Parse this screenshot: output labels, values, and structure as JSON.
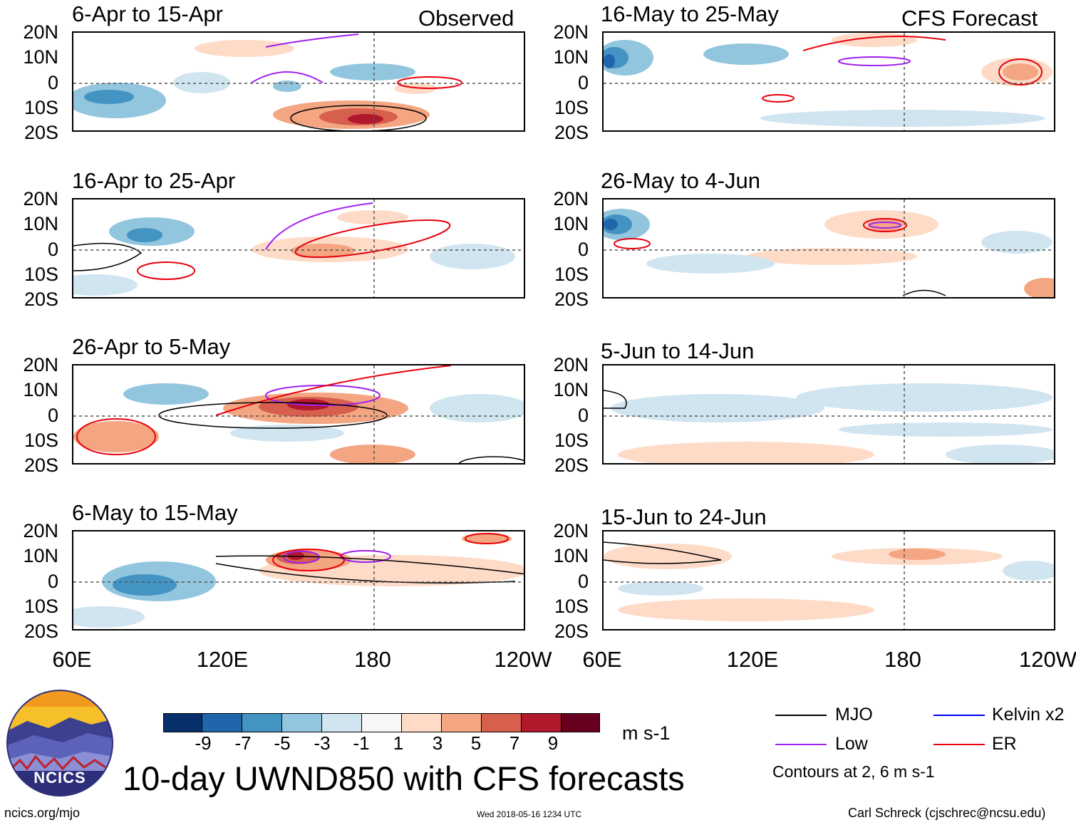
{
  "header": {
    "left": "Observed",
    "right": "CFS Forecast"
  },
  "left_panels": [
    {
      "title": "6-Apr to 15-Apr"
    },
    {
      "title": "16-Apr to 25-Apr"
    },
    {
      "title": "26-Apr to 5-May"
    },
    {
      "title": "6-May to 15-May"
    }
  ],
  "right_panels": [
    {
      "title": "16-May to 25-May"
    },
    {
      "title": "26-May to 4-Jun"
    },
    {
      "title": "5-Jun to 14-Jun"
    },
    {
      "title": "15-Jun to 24-Jun"
    }
  ],
  "lat_labels": [
    "20N",
    "10N",
    "0",
    "10S",
    "20S"
  ],
  "lon_labels": [
    "60E",
    "120E",
    "180",
    "120W"
  ],
  "colorbar": {
    "ticks": [
      "-9",
      "-7",
      "-5",
      "-3",
      "-1",
      "1",
      "3",
      "5",
      "7",
      "9"
    ],
    "colors": [
      "#08306b",
      "#2166ac",
      "#4393c3",
      "#92c5de",
      "#d1e5f0",
      "#f7f7f7",
      "#fddbc7",
      "#f4a582",
      "#d6604d",
      "#b2182b",
      "#67001f"
    ],
    "units": "m s-1"
  },
  "legend": {
    "items": [
      {
        "label": "MJO",
        "color": "#000000"
      },
      {
        "label": "Kelvin x2",
        "color": "#0000ff"
      },
      {
        "label": "Low",
        "color": "#a020f0"
      },
      {
        "label": "ER",
        "color": "#e8000b"
      }
    ],
    "note": "Contours at 2, 6 m s-1"
  },
  "logo_text": "NCICS",
  "main_title": "10-day UWND850 with CFS forecasts",
  "footer": {
    "url": "ncics.org/mjo",
    "timestamp": "Wed 2018-05-16 1234 UTC",
    "credit": "Carl Schreck (cjschrec@ncsu.edu)"
  }
}
